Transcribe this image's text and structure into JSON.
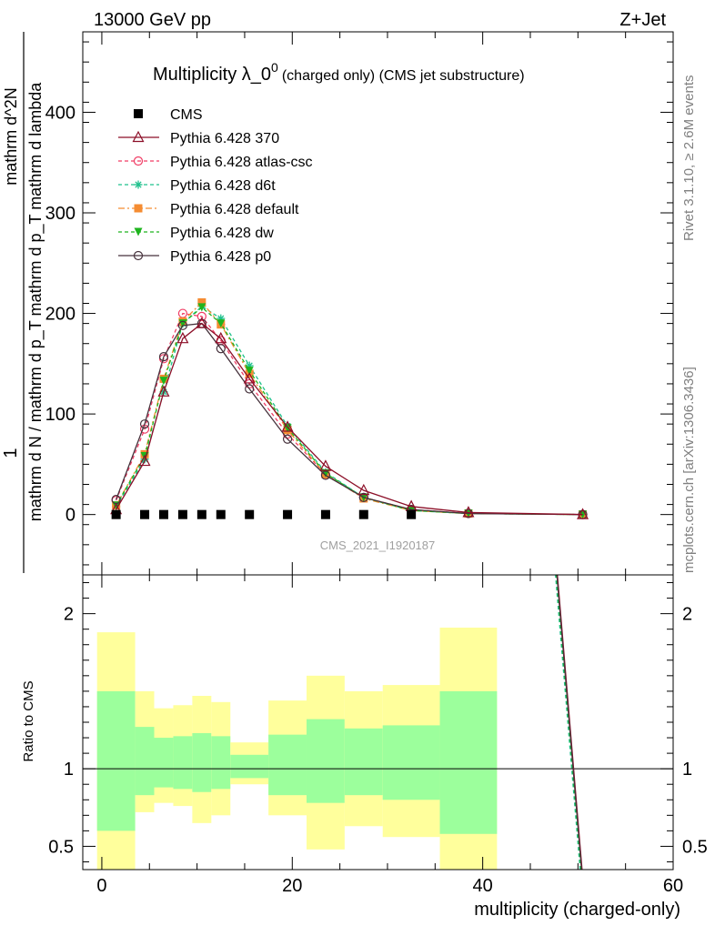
{
  "header": {
    "energy": "13000 GeV pp",
    "process": "Z+Jet"
  },
  "right_labels": {
    "rivet": "Rivet 3.1.10, ≥ 2.6M events",
    "mcplots": "mcplots.cern.ch [arXiv:1306.3436]"
  },
  "chart_data": [
    {
      "type": "line",
      "title_main": "Multiplicity λ_0",
      "title_sup": "0",
      "title_sub": "(charged only) (CMS jet substructure)",
      "ylabel_num": "1",
      "ylabel_den": "mathrm d N / mathrm d p_T mathrm d p_T mathrm d lambda",
      "ylabel_num2": "mathrm d^2N",
      "ylim": [
        -60,
        480
      ],
      "xlim": [
        -2,
        60
      ],
      "yticks": [
        0,
        100,
        200,
        300,
        400
      ],
      "watermark": "CMS_2021_I1920187",
      "legend": [
        {
          "key": "cms",
          "label": "CMS"
        },
        {
          "key": "p370",
          "label": "Pythia 6.428 370"
        },
        {
          "key": "atlas",
          "label": "Pythia 6.428 atlas-csc"
        },
        {
          "key": "d6t",
          "label": "Pythia 6.428 d6t"
        },
        {
          "key": "def",
          "label": "Pythia 6.428 default"
        },
        {
          "key": "dw",
          "label": "Pythia 6.428 dw"
        },
        {
          "key": "p0",
          "label": "Pythia 6.428 p0"
        }
      ],
      "cms": {
        "x": [
          1.5,
          4.5,
          6.5,
          8.5,
          10.5,
          12.5,
          15.5,
          19.5,
          23.5,
          27.5,
          32.5
        ],
        "y": [
          0,
          0,
          0,
          0,
          0,
          0,
          0,
          0,
          0,
          0,
          0
        ]
      },
      "series": [
        {
          "key": "atlas",
          "name": "Pythia 6.428 atlas-csc",
          "color": "#f03c64",
          "dash": "4,3",
          "marker": "circle-open",
          "x": [
            1.5,
            4.5,
            6.5,
            8.5,
            10.5,
            12.5,
            15.5,
            19.5,
            23.5,
            27.5,
            32.5,
            38.5,
            50.5
          ],
          "y": [
            14,
            85,
            155,
            200,
            197,
            173,
            130,
            80,
            40,
            17,
            5,
            1,
            0
          ]
        },
        {
          "key": "d6t",
          "name": "Pythia 6.428 d6t",
          "color": "#1ec08c",
          "dash": "4,3",
          "marker": "star",
          "x": [
            1.5,
            4.5,
            6.5,
            8.5,
            10.5,
            12.5,
            15.5,
            19.5,
            23.5,
            27.5,
            32.5,
            38.5,
            50.5
          ],
          "y": [
            8,
            55,
            122,
            190,
            207,
            195,
            148,
            88,
            42,
            17,
            4,
            1,
            0
          ]
        },
        {
          "key": "def",
          "name": "Pythia 6.428 default",
          "color": "#f58c32",
          "dash": "7,3,2,3",
          "marker": "square",
          "x": [
            1.5,
            4.5,
            6.5,
            8.5,
            10.5,
            12.5,
            15.5,
            19.5,
            23.5,
            27.5,
            32.5,
            38.5,
            50.5
          ],
          "y": [
            9,
            60,
            135,
            192,
            211,
            189,
            140,
            84,
            40,
            16,
            4,
            1,
            0
          ]
        },
        {
          "key": "dw",
          "name": "Pythia 6.428 dw",
          "color": "#1eb41e",
          "dash": "4,3",
          "marker": "tri-down",
          "x": [
            1.5,
            4.5,
            6.5,
            8.5,
            10.5,
            12.5,
            15.5,
            19.5,
            23.5,
            27.5,
            32.5,
            38.5,
            50.5
          ],
          "y": [
            9,
            58,
            133,
            190,
            206,
            190,
            143,
            86,
            41,
            17,
            4,
            1,
            0
          ]
        },
        {
          "key": "p0",
          "name": "Pythia 6.428 p0",
          "color": "#46323c",
          "dash": "",
          "marker": "circle-open",
          "x": [
            1.5,
            4.5,
            6.5,
            8.5,
            10.5,
            12.5,
            15.5,
            19.5,
            23.5,
            27.5,
            32.5,
            38.5,
            50.5
          ],
          "y": [
            15,
            90,
            157,
            188,
            190,
            165,
            125,
            75,
            39,
            17,
            5,
            1,
            0
          ]
        },
        {
          "key": "p370",
          "name": "Pythia 6.428 370",
          "color": "#8c0f28",
          "dash": "",
          "marker": "tri-up-open",
          "x": [
            1.5,
            4.5,
            6.5,
            8.5,
            10.5,
            12.5,
            15.5,
            19.5,
            23.5,
            27.5,
            32.5,
            38.5,
            50.5
          ],
          "y": [
            5,
            53,
            122,
            175,
            190,
            175,
            135,
            87,
            48,
            24,
            8,
            2,
            0
          ]
        }
      ]
    },
    {
      "type": "area",
      "ylabel": "Ratio to CMS",
      "xlabel": "multiplicity (charged-only)",
      "ylim": [
        0.35,
        2.25
      ],
      "xlim": [
        -2,
        60
      ],
      "yticks": [
        {
          "v": 0.5,
          "label": "0.5"
        },
        {
          "v": 1,
          "label": "1"
        },
        {
          "v": 2,
          "label": "2"
        }
      ],
      "xticks": [
        0,
        20,
        40,
        60
      ],
      "bands": [
        {
          "lo": -0.5,
          "hi": 3.5,
          "in_lo": 0.6,
          "in_hi": 1.5,
          "out_lo": 0.35,
          "out_hi": 1.88
        },
        {
          "lo": 3.5,
          "hi": 5.5,
          "in_lo": 0.83,
          "in_hi": 1.27,
          "out_lo": 0.72,
          "out_hi": 1.5
        },
        {
          "lo": 5.5,
          "hi": 7.5,
          "in_lo": 0.88,
          "in_hi": 1.2,
          "out_lo": 0.78,
          "out_hi": 1.39
        },
        {
          "lo": 7.5,
          "hi": 9.5,
          "in_lo": 0.87,
          "in_hi": 1.21,
          "out_lo": 0.76,
          "out_hi": 1.41
        },
        {
          "lo": 9.5,
          "hi": 11.5,
          "in_lo": 0.85,
          "in_hi": 1.23,
          "out_lo": 0.65,
          "out_hi": 1.47
        },
        {
          "lo": 11.5,
          "hi": 13.5,
          "in_lo": 0.87,
          "in_hi": 1.21,
          "out_lo": 0.7,
          "out_hi": 1.43
        },
        {
          "lo": 13.5,
          "hi": 17.5,
          "in_lo": 0.94,
          "in_hi": 1.09,
          "out_lo": 0.9,
          "out_hi": 1.17
        },
        {
          "lo": 17.5,
          "hi": 21.5,
          "in_lo": 0.83,
          "in_hi": 1.22,
          "out_lo": 0.7,
          "out_hi": 1.44
        },
        {
          "lo": 21.5,
          "hi": 25.5,
          "in_lo": 0.78,
          "in_hi": 1.32,
          "out_lo": 0.48,
          "out_hi": 1.6
        },
        {
          "lo": 25.5,
          "hi": 29.5,
          "in_lo": 0.83,
          "in_hi": 1.26,
          "out_lo": 0.63,
          "out_hi": 1.5
        },
        {
          "lo": 29.5,
          "hi": 35.5,
          "in_lo": 0.8,
          "in_hi": 1.28,
          "out_lo": 0.56,
          "out_hi": 1.54
        },
        {
          "lo": 35.5,
          "hi": 41.5,
          "in_lo": 0.58,
          "in_hi": 1.5,
          "out_lo": 0.35,
          "out_hi": 1.91
        }
      ],
      "ratio_lines": [
        {
          "key": "p370",
          "color": "#8c0f28",
          "dash": "",
          "x": [
            47.5,
            50.5
          ],
          "y": [
            2.5,
            0.3
          ]
        },
        {
          "key": "d6t",
          "color": "#1ec08c",
          "dash": "4,3",
          "x": [
            47.3,
            50.3
          ],
          "y": [
            2.5,
            0.3
          ]
        },
        {
          "key": "dw",
          "color": "#1eb41e",
          "dash": "4,3",
          "x": [
            47.4,
            50.4
          ],
          "y": [
            2.5,
            0.3
          ]
        },
        {
          "key": "p0",
          "color": "#46323c",
          "dash": "",
          "x": [
            47.45,
            50.45
          ],
          "y": [
            2.5,
            0.3
          ]
        }
      ]
    }
  ]
}
